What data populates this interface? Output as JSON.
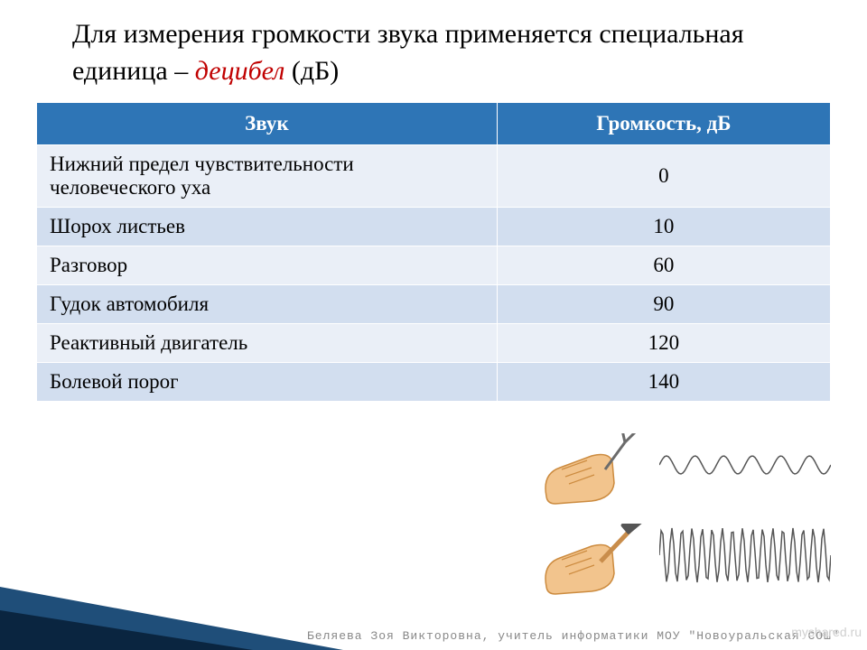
{
  "title": {
    "pre": "Для измерения громкости звука применяется специальная единица – ",
    "term": "децибел",
    "post": " (дБ)"
  },
  "table": {
    "headers": {
      "sound": "Звук",
      "volume": "Громкость, дБ"
    },
    "rows": [
      {
        "label": "Нижний предел чувствительности человеческого уха",
        "value": "0"
      },
      {
        "label": "Шорох листьев",
        "value": "10"
      },
      {
        "label": "Разговор",
        "value": "60"
      },
      {
        "label": "Гудок автомобиля",
        "value": "90"
      },
      {
        "label": "Реактивный двигатель",
        "value": "120"
      },
      {
        "label": "Болевой порог",
        "value": "140"
      }
    ],
    "header_bg": "#2e75b6",
    "row_odd_bg": "#eaeff7",
    "row_even_bg": "#d2deef",
    "font_size": 23
  },
  "colors": {
    "emphasis": "#c00000",
    "triangle_outer": "#1f4e79",
    "triangle_inner": "#0a2540",
    "hand_fill": "#f2c48d",
    "hand_stroke": "#cc8b3f",
    "fork_color": "#6b6b6b",
    "hammer_handle": "#c98d4b",
    "hammer_head": "#555555"
  },
  "attribution": "Беляева Зоя Викторовна, учитель информатики МОУ \"Новоуральская СОШ\"",
  "watermark": "myshared.ru",
  "waves": {
    "low": {
      "amplitude": 10,
      "periods": 6,
      "stroke": "#555555"
    },
    "high": {
      "amplitude": 30,
      "periods": 17,
      "stroke": "#555555"
    }
  }
}
